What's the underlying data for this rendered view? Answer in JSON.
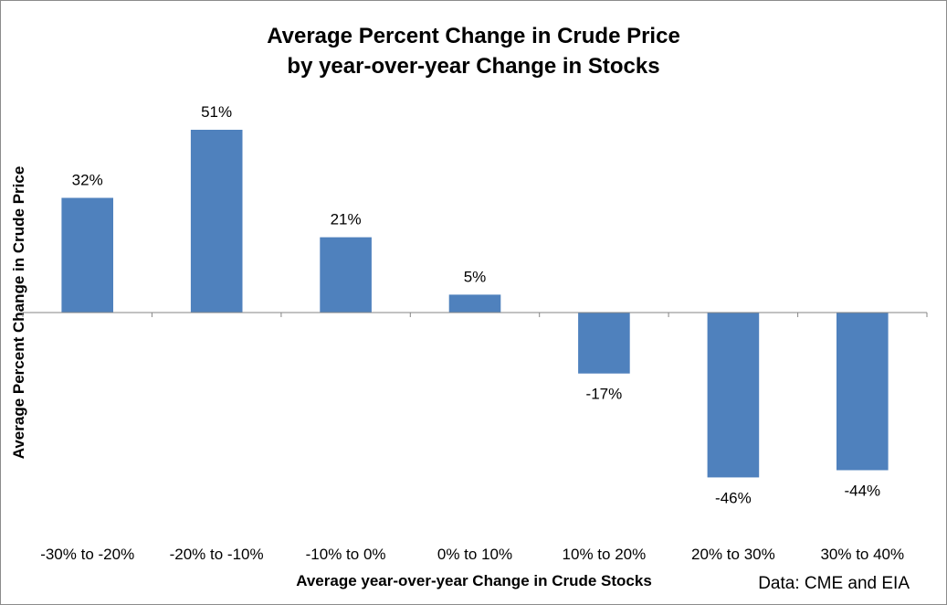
{
  "chart_data": {
    "type": "bar",
    "title": [
      "Average Percent Change in Crude Price",
      "by year-over-year Change in Stocks"
    ],
    "xlabel": "Average year-over-year Change in Crude Stocks",
    "ylabel": "Average Percent Change in Crude Price",
    "categories": [
      "-30% to -20%",
      "-20% to -10%",
      "-10% to 0%",
      "0% to 10%",
      "10% to 20%",
      "20% to 30%",
      "30% to 40%"
    ],
    "values": [
      32,
      51,
      21,
      5,
      -17,
      -46,
      -44
    ],
    "data_labels": [
      "32%",
      "51%",
      "21%",
      "5%",
      "-17%",
      "-46%",
      "-44%"
    ],
    "ylim": [
      -60,
      60
    ],
    "grid": false,
    "legend": "none",
    "bar_color": "#4f81bd",
    "source": "Data: CME and EIA"
  }
}
